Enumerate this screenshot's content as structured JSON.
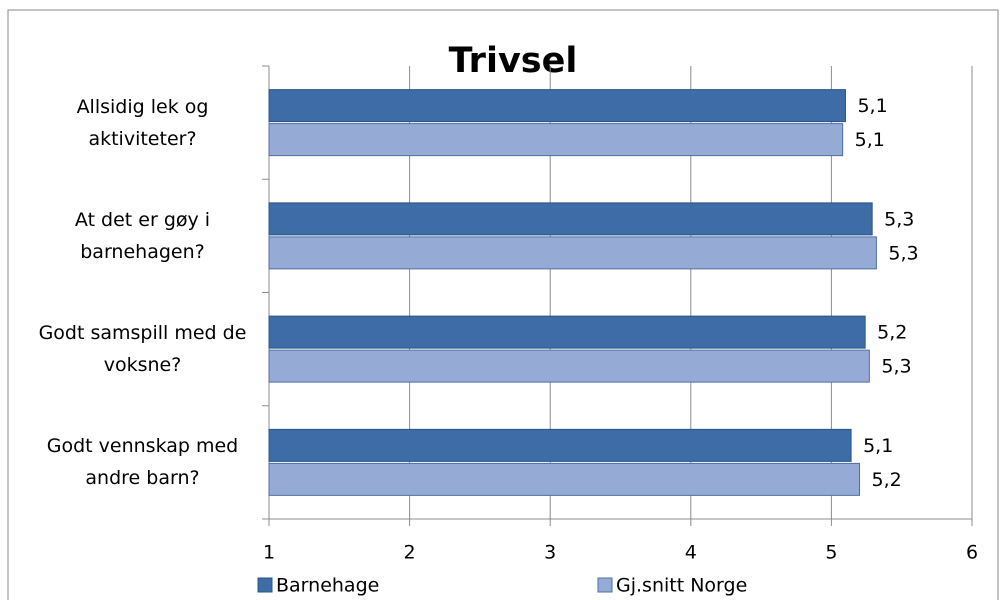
{
  "chart_data": {
    "type": "hbar",
    "title": "Trivsel",
    "categories": [
      "Allsidig lek og aktiviteter?",
      "At det er gøy i barnehagen?",
      "Godt samspill med de voksne?",
      "Godt vennskap med andre barn?"
    ],
    "series": [
      {
        "name": "Barnehage",
        "color": "#3d6ca6",
        "values": [
          5.1,
          5.29,
          5.24,
          5.14
        ],
        "value_labels": [
          "5,1",
          "5,3",
          "5,2",
          "5,1"
        ]
      },
      {
        "name": "Gj.snitt Norge",
        "color": "#95abd5",
        "values": [
          5.08,
          5.32,
          5.27,
          5.2
        ],
        "value_labels": [
          "5,1",
          "5,3",
          "5,3",
          "5,2"
        ]
      }
    ],
    "xlim": [
      1,
      6
    ],
    "xticks": [
      1,
      2,
      3,
      4,
      5,
      6
    ],
    "grid": true
  }
}
